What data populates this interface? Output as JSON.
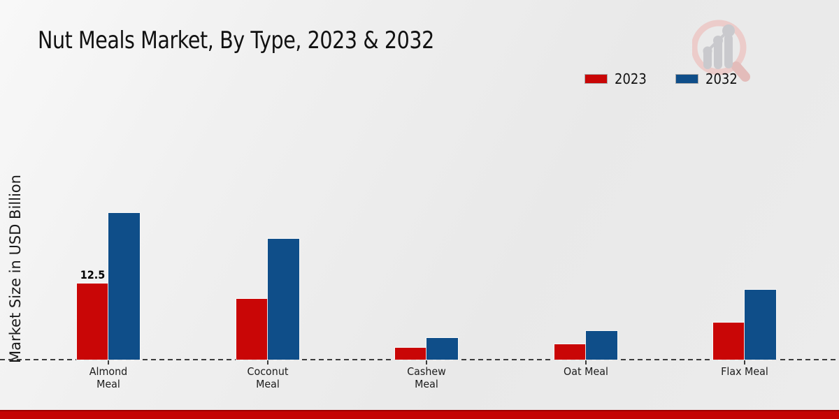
{
  "page": {
    "title": "Nut Meals Market, By Type, 2023 & 2032",
    "ylabel": "Market Size in USD Billion",
    "footer_color": "#c40404",
    "logo_icon": "magnifier-bar-chart-watermark"
  },
  "chart_data": {
    "type": "bar",
    "title": "Nut Meals Market, By Type, 2023 & 2032",
    "xlabel": "",
    "ylabel": "Market Size in USD Billion",
    "categories": [
      "Almond Meal",
      "Coconut Meal",
      "Cashew Meal",
      "Oat Meal",
      "Flax Meal"
    ],
    "category_label_lines": [
      "Almond\nMeal",
      "Coconut\nMeal",
      "Cashew\nMeal",
      "Oat Meal",
      "Flax Meal"
    ],
    "series": [
      {
        "name": "2023",
        "color": "#c90606",
        "values": [
          12.5,
          10.0,
          1.9,
          2.5,
          6.1
        ]
      },
      {
        "name": "2032",
        "color": "#0f4e89",
        "values": [
          24.1,
          19.9,
          3.6,
          4.7,
          11.5
        ]
      }
    ],
    "annotations": [
      {
        "series": "2023",
        "category": "Almond Meal",
        "text": "12.5"
      }
    ],
    "ylim": [
      0,
      28
    ],
    "grid": false,
    "legend_position": "top-right",
    "baseline_style": "dashed",
    "y_axis_ticks_visible": false
  }
}
